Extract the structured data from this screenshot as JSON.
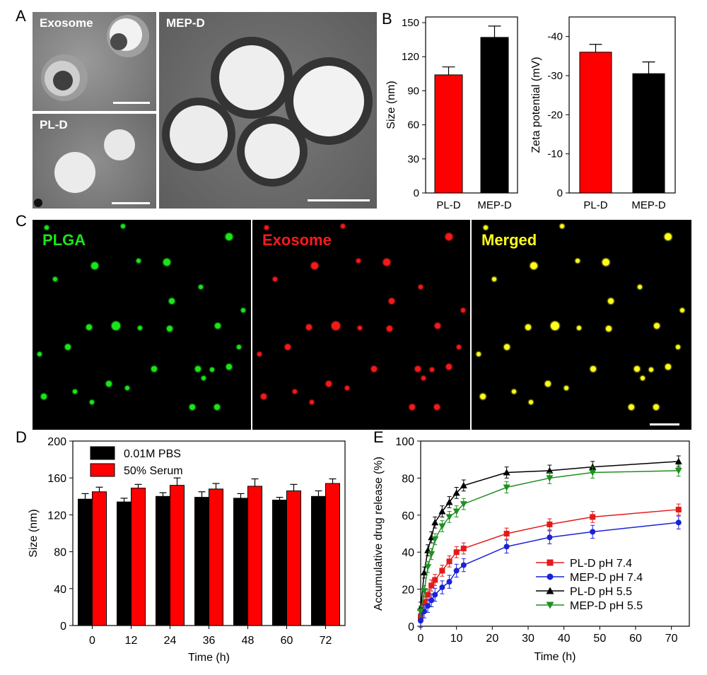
{
  "panels": {
    "a": "A",
    "b": "B",
    "c": "C",
    "d": "D",
    "e": "E"
  },
  "tem": {
    "exosome": "Exosome",
    "pld": "PL-D",
    "mepd": "MEP-D"
  },
  "fluo": {
    "plga": "PLGA",
    "exosome": "Exosome",
    "merged": "Merged",
    "plga_color": "#19e619",
    "exosome_color": "#ff1a1a",
    "merged_color": "#ffff1a"
  },
  "chart_data": [
    {
      "id": "B-size",
      "type": "bar",
      "categories": [
        "PL-D",
        "MEP-D"
      ],
      "values": [
        104,
        137
      ],
      "errors": [
        7,
        10
      ],
      "colors": [
        "#ff0000",
        "#000000"
      ],
      "ylabel": "Size (nm)",
      "ylim": [
        0,
        155
      ],
      "yticks": [
        0,
        30,
        60,
        90,
        120,
        150
      ],
      "ytick_labels": [
        "0",
        "30",
        "60",
        "90",
        "120",
        "150"
      ]
    },
    {
      "id": "B-zeta",
      "type": "bar",
      "categories": [
        "PL-D",
        "MEP-D"
      ],
      "values": [
        -36,
        -30.5
      ],
      "errors": [
        2,
        3
      ],
      "colors": [
        "#ff0000",
        "#000000"
      ],
      "ylabel": "Zeta potential (mV)",
      "ylim": [
        0,
        -45
      ],
      "yticks": [
        0,
        -10,
        -20,
        -30,
        -40
      ],
      "ytick_labels": [
        "0",
        "-10",
        "-20",
        "-30",
        "-40"
      ]
    },
    {
      "id": "D",
      "type": "bar",
      "categories": [
        "0",
        "12",
        "24",
        "36",
        "48",
        "60",
        "72"
      ],
      "series": [
        {
          "name": "0.01M PBS",
          "color": "#000000",
          "values": [
            137,
            134,
            140,
            139,
            138,
            136,
            140
          ],
          "errors": [
            6,
            4,
            4,
            6,
            5,
            3,
            6
          ]
        },
        {
          "name": "50% Serum",
          "color": "#ff0000",
          "values": [
            145,
            149,
            152,
            148,
            151,
            146,
            154
          ],
          "errors": [
            5,
            4,
            8,
            6,
            8,
            7,
            5
          ]
        }
      ],
      "xlabel": "Time (h)",
      "ylabel": "Size (nm)",
      "ylim": [
        0,
        200
      ],
      "yticks": [
        0,
        40,
        80,
        120,
        160,
        200
      ],
      "ytick_labels": [
        "0",
        "40",
        "80",
        "120",
        "160",
        "200"
      ],
      "legend_position": "top-left"
    },
    {
      "id": "E",
      "type": "line",
      "x": [
        0,
        1,
        2,
        3,
        4,
        6,
        8,
        10,
        12,
        24,
        36,
        48,
        72
      ],
      "series": [
        {
          "name": "PL-D  pH 7.4",
          "color": "#e31a1a",
          "marker": "square",
          "values": [
            5,
            13,
            17,
            22,
            25,
            30,
            35,
            40,
            42,
            50,
            55,
            59,
            63
          ],
          "error": 3
        },
        {
          "name": "MEP-D  pH 7.4",
          "color": "#1a22d8",
          "marker": "circle",
          "values": [
            3,
            8,
            11,
            14,
            17,
            21,
            24,
            30,
            33,
            43,
            48,
            51,
            56
          ],
          "error": 3.5
        },
        {
          "name": "PL-D  pH 5.5",
          "color": "#000000",
          "marker": "triangle-up",
          "values": [
            10,
            29,
            41,
            48,
            56,
            62,
            67,
            72,
            76,
            83,
            84,
            86,
            89
          ],
          "error": 3
        },
        {
          "name": "MEP-D  pH 5.5",
          "color": "#1f8f1f",
          "marker": "triangle-down",
          "values": [
            8,
            19,
            32,
            39,
            47,
            54,
            59,
            62,
            66,
            75,
            80,
            83,
            84
          ],
          "error": 3
        }
      ],
      "xlabel": "Time (h)",
      "ylabel": "Accumulative drug release (%)",
      "xlim": [
        0,
        75
      ],
      "ylim": [
        0,
        100
      ],
      "xticks": [
        0,
        10,
        20,
        30,
        40,
        50,
        60,
        70
      ],
      "xtick_labels": [
        "0",
        "10",
        "20",
        "30",
        "40",
        "50",
        "60",
        "70"
      ],
      "yticks": [
        0,
        20,
        40,
        60,
        80,
        100
      ],
      "ytick_labels": [
        "0",
        "20",
        "40",
        "60",
        "80",
        "100"
      ],
      "legend_position": "bottom-right"
    }
  ]
}
